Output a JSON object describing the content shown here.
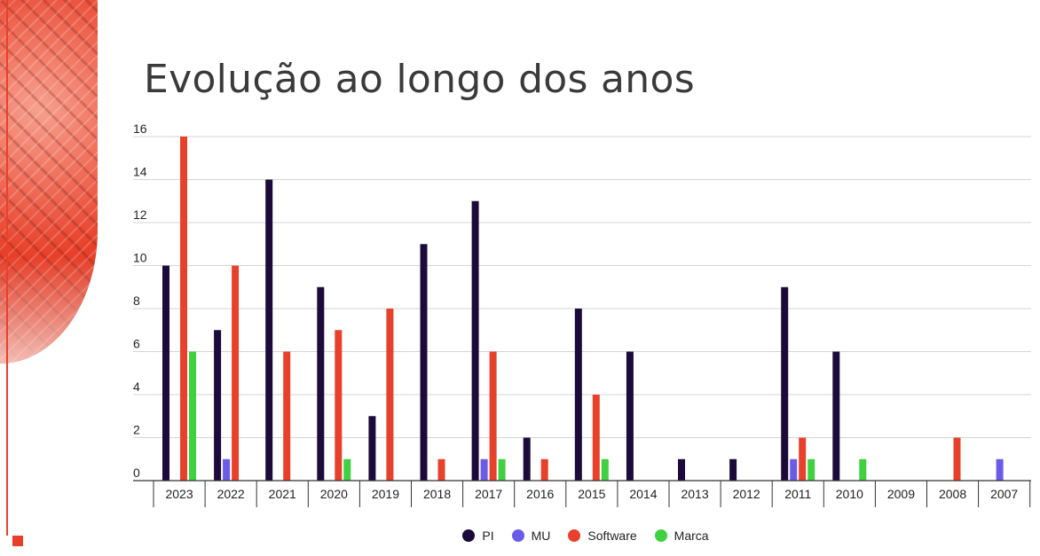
{
  "slide": {
    "title": "Evolução ao longo dos anos"
  },
  "chart_data": {
    "type": "bar",
    "title": "",
    "xlabel": "",
    "ylabel": "",
    "ylim": [
      0,
      16
    ],
    "yticks": [
      0,
      2,
      4,
      6,
      8,
      10,
      12,
      14,
      16
    ],
    "grid": true,
    "legend_position": "bottom-center",
    "categories": [
      "2023",
      "2022",
      "2021",
      "2020",
      "2019",
      "2018",
      "2017",
      "2016",
      "2015",
      "2014",
      "2013",
      "2012",
      "2011",
      "2010",
      "2009",
      "2008",
      "2007"
    ],
    "series": [
      {
        "name": "PI",
        "color": "#1c0a3a",
        "values": [
          10,
          7,
          14,
          9,
          3,
          11,
          13,
          2,
          8,
          6,
          1,
          1,
          9,
          6,
          0,
          0,
          0
        ]
      },
      {
        "name": "MU",
        "color": "#6b5ce7",
        "values": [
          0,
          1,
          0,
          0,
          0,
          0,
          1,
          0,
          0,
          0,
          0,
          0,
          1,
          0,
          0,
          0,
          1
        ]
      },
      {
        "name": "Software",
        "color": "#e8412b",
        "values": [
          16,
          10,
          6,
          7,
          8,
          1,
          6,
          1,
          4,
          0,
          0,
          0,
          2,
          0,
          0,
          2,
          0
        ]
      },
      {
        "name": "Marca",
        "color": "#3fd13f",
        "values": [
          6,
          0,
          0,
          1,
          0,
          0,
          1,
          0,
          1,
          0,
          0,
          0,
          1,
          1,
          0,
          0,
          0
        ]
      }
    ]
  }
}
